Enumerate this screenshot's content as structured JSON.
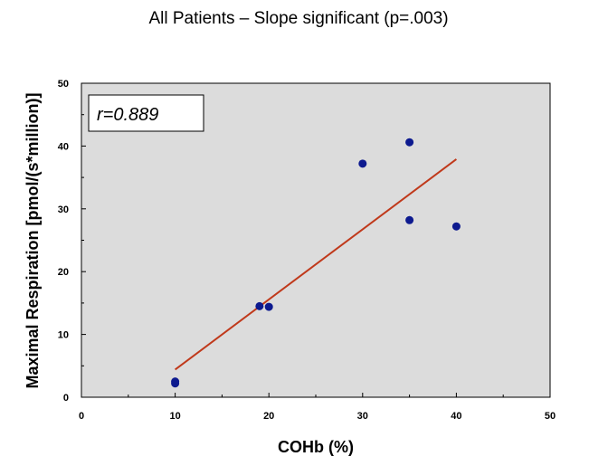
{
  "chart_data": {
    "type": "scatter",
    "title": "All Patients – Slope significant (p=.003)",
    "xlabel": "COHb (%)",
    "ylabel": "Maximal Respiration [pmol/(s*million)]",
    "xlim": [
      0,
      50
    ],
    "ylim": [
      0,
      50
    ],
    "xticks": [
      0,
      10,
      20,
      30,
      40,
      50
    ],
    "yticks": [
      0,
      10,
      20,
      30,
      40,
      50
    ],
    "grid": false,
    "annotation": "r=0.889",
    "series": [
      {
        "points": [
          {
            "x": 10,
            "y": 2.5
          },
          {
            "x": 10,
            "y": 2.2
          },
          {
            "x": 19,
            "y": 14.5
          },
          {
            "x": 20,
            "y": 14.4
          },
          {
            "x": 30,
            "y": 37.2
          },
          {
            "x": 35,
            "y": 40.6
          },
          {
            "x": 35,
            "y": 28.2
          },
          {
            "x": 40,
            "y": 27.2
          }
        ]
      }
    ],
    "trendline": {
      "x": [
        10,
        40
      ],
      "y": [
        4.4,
        37.9
      ]
    },
    "colors": {
      "plot_background": "#dcdcdc",
      "marker": "#0d1a8f",
      "trendline": "#c0391b"
    }
  }
}
